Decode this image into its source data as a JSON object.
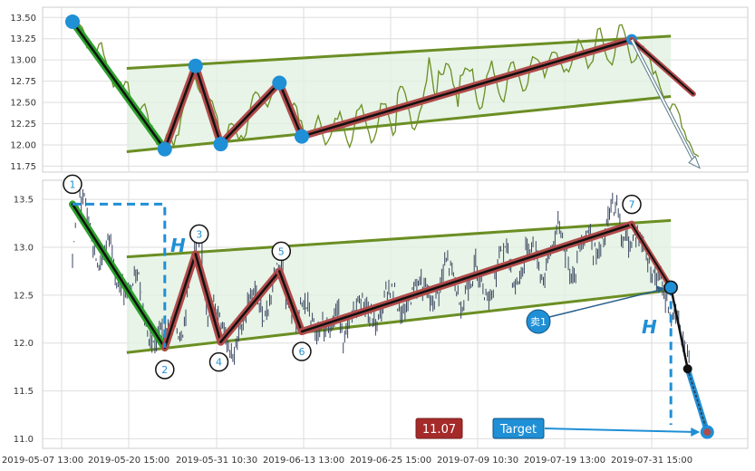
{
  "chart_data": [
    {
      "type": "line",
      "panel": "top",
      "ylim": [
        11.68,
        13.62
      ],
      "yticks": [
        "11.75",
        "12.00",
        "12.25",
        "12.50",
        "12.75",
        "13.00",
        "13.25",
        "13.50"
      ],
      "grid": true,
      "series": [
        {
          "style": "price-line",
          "color": "#6b8e23"
        }
      ],
      "zigzag": [
        {
          "x": 0.0,
          "y": 13.45
        },
        {
          "x": 0.165,
          "y": 11.95
        },
        {
          "x": 0.22,
          "y": 12.93
        },
        {
          "x": 0.265,
          "y": 12.01
        },
        {
          "x": 0.37,
          "y": 12.73
        },
        {
          "x": 0.41,
          "y": 12.1
        },
        {
          "x": 1.0,
          "y": 13.24
        }
      ],
      "channel_upper": [
        {
          "x": 0.097,
          "y": 12.9
        },
        {
          "x": 1.07,
          "y": 13.28
        }
      ],
      "channel_lower": [
        {
          "x": 0.097,
          "y": 11.92
        },
        {
          "x": 1.07,
          "y": 12.57
        }
      ],
      "projection": [
        {
          "x": 1.0,
          "y": 13.24
        },
        {
          "x": 1.11,
          "y": 12.6
        },
        {
          "x": 1.12,
          "y": 11.77
        }
      ]
    },
    {
      "type": "line",
      "panel": "bottom",
      "ylim": [
        10.9,
        13.7
      ],
      "yticks": [
        "11.0",
        "11.5",
        "12.0",
        "12.5",
        "13.0",
        "13.5"
      ],
      "xticks": [
        "2019-05-07 13:00",
        "2019-05-20 15:00",
        "2019-05-31 10:30",
        "2019-06-13 13:00",
        "2019-06-25 15:00",
        "2019-07-09 10:30",
        "2019-07-19 13:00",
        "2019-07-31 15:00"
      ],
      "grid": true,
      "series": [
        {
          "style": "ohlc-bars",
          "color": "#3a4660"
        }
      ],
      "zigzag_points": [
        {
          "label": "1",
          "x": 0.0,
          "y": 13.45
        },
        {
          "label": "2",
          "x": 0.165,
          "y": 11.95
        },
        {
          "label": "3",
          "x": 0.22,
          "y": 12.93
        },
        {
          "label": "4",
          "x": 0.265,
          "y": 12.01
        },
        {
          "label": "5",
          "x": 0.37,
          "y": 12.75
        },
        {
          "label": "6",
          "x": 0.41,
          "y": 12.12
        },
        {
          "label": "7",
          "x": 1.0,
          "y": 13.24
        }
      ],
      "channel_upper": [
        {
          "x": 0.097,
          "y": 12.9
        },
        {
          "x": 1.07,
          "y": 13.28
        }
      ],
      "channel_lower": [
        {
          "x": 0.097,
          "y": 11.9
        },
        {
          "x": 1.07,
          "y": 12.55
        }
      ],
      "breakout_point": {
        "x": 1.07,
        "y": 12.58
      },
      "stop_point": {
        "x": 1.1,
        "y": 11.73
      },
      "target_point": {
        "x": 1.135,
        "y": 11.07
      }
    }
  ],
  "labels": {
    "h_left": "H",
    "h_right": "H",
    "sell": "卖1",
    "target_value": "11.07",
    "target_label": "Target"
  },
  "colors": {
    "zigzag_outer": "#b14a4a",
    "zigzag_inner": "#111111",
    "first_leg": "#2ca02c",
    "channel_line": "#6b8e23",
    "channel_fill": "#dff0df",
    "marker_blue": "#1f8fd6",
    "dashed_blue": "#1f8fd6",
    "target_box": "#a52a2a"
  }
}
